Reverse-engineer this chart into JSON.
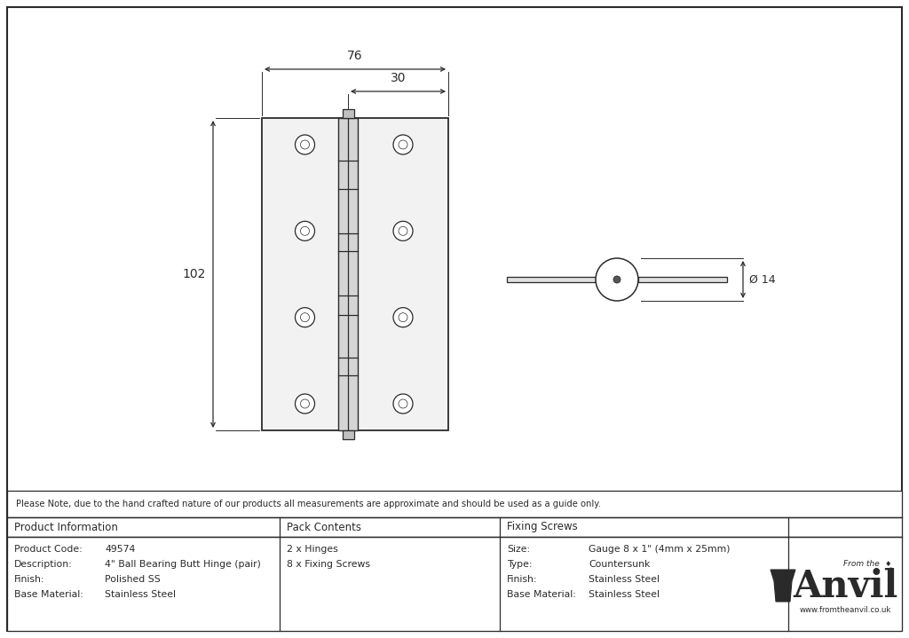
{
  "bg_color": "#ffffff",
  "line_color": "#2a2a2a",
  "note_text": "Please Note, due to the hand crafted nature of our products all measurements are approximate and should be used as a guide only.",
  "table_headers": [
    "Product Information",
    "Pack Contents",
    "Fixing Screws"
  ],
  "col1_rows": [
    [
      "Product Code:",
      "49574"
    ],
    [
      "Description:",
      "4\" Ball Bearing Butt Hinge (pair)"
    ],
    [
      "Finish:",
      "Polished SS"
    ],
    [
      "Base Material:",
      "Stainless Steel"
    ]
  ],
  "col2_rows": [
    "2 x Hinges",
    "8 x Fixing Screws"
  ],
  "col3_rows": [
    [
      "Size:",
      "Gauge 8 x 1\" (4mm x 25mm)"
    ],
    [
      "Type:",
      "Countersunk"
    ],
    [
      "Finish:",
      "Stainless Steel"
    ],
    [
      "Base Material:",
      "Stainless Steel"
    ]
  ],
  "dim_76": "76",
  "dim_30": "30",
  "dim_102": "102",
  "dim_phi14": "Ø 14"
}
